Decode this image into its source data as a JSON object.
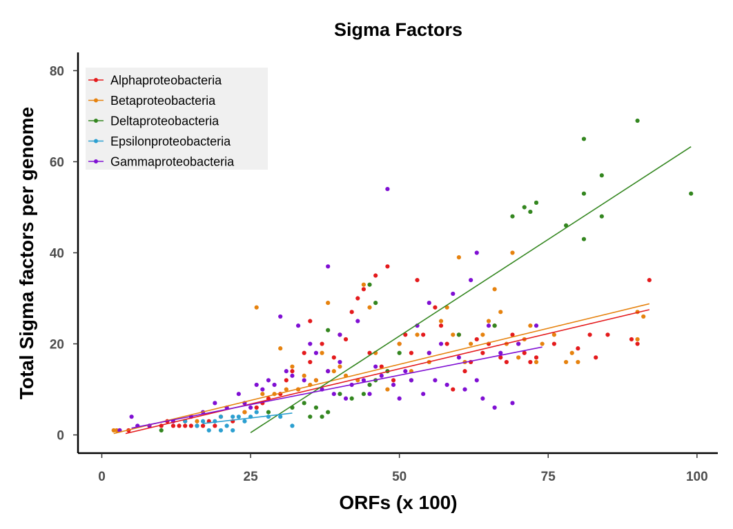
{
  "chart_data": {
    "type": "scatter",
    "title": "Sigma Factors",
    "xlabel": "ORFs (x 100)",
    "ylabel": "Total Sigma factors per genome",
    "xlim": [
      -4,
      103.5
    ],
    "ylim": [
      -4,
      84
    ],
    "xticks": [
      0,
      25,
      50,
      75,
      100
    ],
    "yticks": [
      0,
      20,
      40,
      60,
      80
    ],
    "grid": false,
    "legend_position": "top-left",
    "series": [
      {
        "name": "Alphaproteobacteria",
        "color": "#e41a1c",
        "points": [
          [
            4.5,
            1
          ],
          [
            8,
            2
          ],
          [
            10,
            2
          ],
          [
            11,
            3
          ],
          [
            12,
            2
          ],
          [
            13,
            2
          ],
          [
            14,
            2
          ],
          [
            14,
            3
          ],
          [
            15,
            2
          ],
          [
            16,
            2
          ],
          [
            17,
            2
          ],
          [
            18,
            3
          ],
          [
            19,
            2
          ],
          [
            20,
            4
          ],
          [
            22,
            3
          ],
          [
            24,
            5
          ],
          [
            26,
            6
          ],
          [
            27,
            7
          ],
          [
            28,
            8
          ],
          [
            30,
            9
          ],
          [
            31,
            12
          ],
          [
            32,
            14
          ],
          [
            33,
            10
          ],
          [
            34,
            18
          ],
          [
            35,
            16
          ],
          [
            35,
            25
          ],
          [
            36,
            12
          ],
          [
            37,
            20
          ],
          [
            38,
            14
          ],
          [
            39,
            17
          ],
          [
            40,
            22
          ],
          [
            41,
            21
          ],
          [
            42,
            27
          ],
          [
            43,
            30
          ],
          [
            44,
            32
          ],
          [
            45,
            18
          ],
          [
            46,
            35
          ],
          [
            47,
            15
          ],
          [
            48,
            37
          ],
          [
            49,
            12
          ],
          [
            50,
            20
          ],
          [
            51,
            22
          ],
          [
            52,
            18
          ],
          [
            53,
            34
          ],
          [
            54,
            22
          ],
          [
            55,
            18
          ],
          [
            56,
            28
          ],
          [
            57,
            24
          ],
          [
            58,
            20
          ],
          [
            59,
            10
          ],
          [
            60,
            22
          ],
          [
            61,
            14
          ],
          [
            62,
            16
          ],
          [
            63,
            21
          ],
          [
            64,
            18
          ],
          [
            65,
            20
          ],
          [
            66,
            24
          ],
          [
            67,
            17
          ],
          [
            68,
            16
          ],
          [
            69,
            22
          ],
          [
            70,
            20
          ],
          [
            71,
            18
          ],
          [
            72,
            16
          ],
          [
            73,
            17
          ],
          [
            76,
            20
          ],
          [
            80,
            19
          ],
          [
            82,
            22
          ],
          [
            83,
            17
          ],
          [
            85,
            22
          ],
          [
            89,
            21
          ],
          [
            92,
            34
          ],
          [
            90,
            20
          ]
        ],
        "trend": [
          [
            4,
            0.3
          ],
          [
            92,
            27.5
          ]
        ]
      },
      {
        "name": "Betaproteobacteria",
        "color": "#e6820e",
        "points": [
          [
            2,
            1
          ],
          [
            2.5,
            1
          ],
          [
            3,
            1
          ],
          [
            16,
            3
          ],
          [
            20,
            4
          ],
          [
            24,
            5
          ],
          [
            26,
            28
          ],
          [
            27,
            9
          ],
          [
            29,
            9
          ],
          [
            30,
            19
          ],
          [
            31,
            10
          ],
          [
            32,
            15
          ],
          [
            33,
            10
          ],
          [
            34,
            13
          ],
          [
            35,
            11
          ],
          [
            36,
            12
          ],
          [
            37,
            18
          ],
          [
            38,
            29
          ],
          [
            39,
            14
          ],
          [
            40,
            15
          ],
          [
            41,
            13
          ],
          [
            43,
            12
          ],
          [
            44,
            33
          ],
          [
            45,
            28
          ],
          [
            46,
            18
          ],
          [
            48,
            10
          ],
          [
            50,
            20
          ],
          [
            52,
            14
          ],
          [
            53,
            22
          ],
          [
            55,
            16
          ],
          [
            57,
            25
          ],
          [
            58,
            28
          ],
          [
            59,
            22
          ],
          [
            60,
            39
          ],
          [
            61,
            16
          ],
          [
            62,
            20
          ],
          [
            64,
            22
          ],
          [
            65,
            25
          ],
          [
            66,
            32
          ],
          [
            67,
            27
          ],
          [
            68,
            20
          ],
          [
            69,
            40
          ],
          [
            70,
            17
          ],
          [
            71,
            21
          ],
          [
            72,
            24
          ],
          [
            73,
            16
          ],
          [
            74,
            20
          ],
          [
            76,
            22
          ],
          [
            78,
            16
          ],
          [
            79,
            18
          ],
          [
            80,
            16
          ],
          [
            90,
            27
          ],
          [
            91,
            26
          ],
          [
            90,
            21
          ]
        ],
        "trend": [
          [
            2,
            0.3
          ],
          [
            92,
            28.8
          ]
        ]
      },
      {
        "name": "Deltaproteobacteria",
        "color": "#33861f",
        "points": [
          [
            10,
            1
          ],
          [
            28,
            5
          ],
          [
            32,
            6
          ],
          [
            34,
            7
          ],
          [
            35,
            4
          ],
          [
            36,
            6
          ],
          [
            37,
            4
          ],
          [
            38,
            5
          ],
          [
            38,
            23
          ],
          [
            40,
            9
          ],
          [
            42,
            8
          ],
          [
            44,
            9
          ],
          [
            45,
            11
          ],
          [
            45,
            33
          ],
          [
            46,
            12
          ],
          [
            46,
            29
          ],
          [
            48,
            14
          ],
          [
            50,
            18
          ],
          [
            52,
            12
          ],
          [
            60,
            22
          ],
          [
            66,
            24
          ],
          [
            69,
            48
          ],
          [
            71,
            50
          ],
          [
            72,
            49
          ],
          [
            73,
            51
          ],
          [
            78,
            46
          ],
          [
            81,
            43
          ],
          [
            81,
            53
          ],
          [
            81,
            65
          ],
          [
            84,
            48
          ],
          [
            84,
            57
          ],
          [
            90,
            69
          ],
          [
            99,
            53
          ]
        ],
        "trend": [
          [
            25,
            0.5
          ],
          [
            99,
            63.3
          ]
        ]
      },
      {
        "name": "Epsilonproteobacteria",
        "color": "#2b9fd0",
        "points": [
          [
            14,
            3
          ],
          [
            16,
            2
          ],
          [
            17,
            3
          ],
          [
            18,
            1
          ],
          [
            19,
            3
          ],
          [
            20,
            1
          ],
          [
            20,
            4
          ],
          [
            21,
            2
          ],
          [
            22,
            1
          ],
          [
            22,
            4
          ],
          [
            23,
            4
          ],
          [
            24,
            3
          ],
          [
            25,
            4
          ],
          [
            26,
            5
          ],
          [
            28,
            4
          ],
          [
            30,
            4
          ],
          [
            32,
            2
          ]
        ],
        "trend": [
          [
            17,
            2.5
          ],
          [
            32,
            4.8
          ]
        ]
      },
      {
        "name": "Gammaproteobacteria",
        "color": "#7f0fd3",
        "points": [
          [
            3,
            1
          ],
          [
            5,
            4
          ],
          [
            6,
            2
          ],
          [
            8,
            2
          ],
          [
            12,
            3
          ],
          [
            15,
            4
          ],
          [
            17,
            5
          ],
          [
            19,
            7
          ],
          [
            21,
            6
          ],
          [
            23,
            9
          ],
          [
            24,
            7
          ],
          [
            25,
            6
          ],
          [
            26,
            11
          ],
          [
            27,
            10
          ],
          [
            28,
            12
          ],
          [
            29,
            11
          ],
          [
            30,
            26
          ],
          [
            31,
            14
          ],
          [
            32,
            13
          ],
          [
            33,
            24
          ],
          [
            34,
            12
          ],
          [
            35,
            20
          ],
          [
            36,
            18
          ],
          [
            37,
            10
          ],
          [
            38,
            14
          ],
          [
            39,
            9
          ],
          [
            40,
            16
          ],
          [
            40,
            22
          ],
          [
            41,
            8
          ],
          [
            42,
            11
          ],
          [
            43,
            25
          ],
          [
            44,
            12
          ],
          [
            45,
            9
          ],
          [
            46,
            15
          ],
          [
            47,
            13
          ],
          [
            48,
            54
          ],
          [
            49,
            11
          ],
          [
            50,
            8
          ],
          [
            51,
            14
          ],
          [
            52,
            12
          ],
          [
            53,
            24
          ],
          [
            54,
            9
          ],
          [
            55,
            18
          ],
          [
            56,
            12
          ],
          [
            57,
            20
          ],
          [
            58,
            11
          ],
          [
            59,
            31
          ],
          [
            60,
            17
          ],
          [
            61,
            10
          ],
          [
            62,
            34
          ],
          [
            63,
            12
          ],
          [
            64,
            8
          ],
          [
            65,
            24
          ],
          [
            66,
            6
          ],
          [
            67,
            18
          ],
          [
            69,
            7
          ],
          [
            70,
            20
          ],
          [
            73,
            24
          ],
          [
            38,
            37
          ],
          [
            55,
            29
          ],
          [
            63,
            40
          ]
        ],
        "trend": [
          [
            5,
            1.5
          ],
          [
            74,
            19.3
          ]
        ]
      }
    ]
  }
}
